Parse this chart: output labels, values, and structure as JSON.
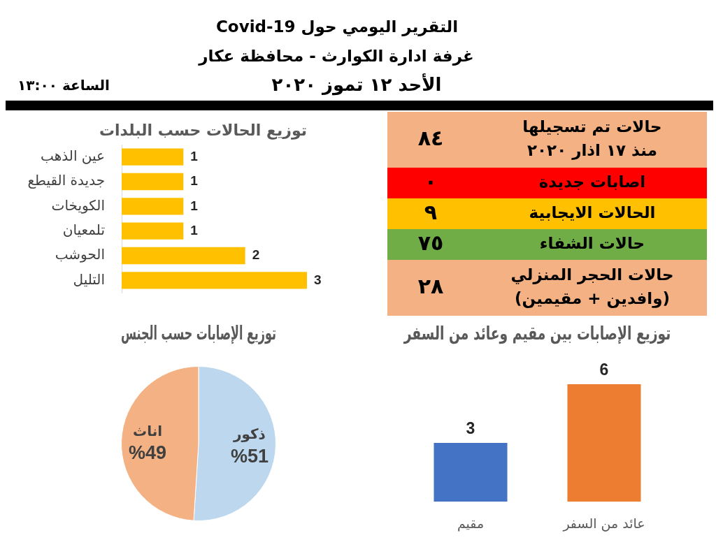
{
  "chart_data": [
    {
      "type": "other",
      "title": "التقرير اليومي حول Covid-19",
      "subtitle": "غرفة ادارة الكوارث - محافظة عكار",
      "annotations": [
        "الأحد ١٢ تموز ٢٠٢٠",
        "الساعة ١٣:٠٠"
      ]
    },
    {
      "type": "other",
      "categories": [
        "حالات تم تسجيلها\nمنذ ١٧ اذار ٢٠٢٠",
        "اصابات جديدة",
        "الحالات الايجابية",
        "حالات الشفاء",
        "حالات الحجر المنزلي\n(وافدين + مقيمين)"
      ],
      "value_labels": [
        "٨٤",
        "٠",
        "٩",
        "٧٥",
        "٢٨"
      ],
      "colors": [
        "#f4b183",
        "#ff0000",
        "#ffc000",
        "#70ad47",
        "#f4b183"
      ]
    },
    {
      "type": "bar",
      "orientation": "horizontal",
      "title": "توزيع الحالات حسب البلدات",
      "categories": [
        "عين الذهب",
        "جديدة القيطع",
        "الكويخات",
        "تلمعيان",
        "الحوشب",
        "التليل"
      ],
      "values": [
        1,
        1,
        1,
        1,
        2,
        3
      ],
      "color": "#ffc000",
      "xlim": [
        0,
        3
      ],
      "data_labels": true,
      "tick_labels": "y"
    },
    {
      "type": "bar",
      "title": "توزيع الإصابات بين مقيم وعائد من السفر",
      "categories": [
        "مقيم",
        "عائد من السفر"
      ],
      "values": [
        3,
        6
      ],
      "colors": [
        "#4472c4",
        "#ed7d31"
      ],
      "ylim": [
        0,
        6
      ],
      "data_labels": true,
      "tick_labels": "x"
    },
    {
      "type": "pie",
      "title": "توزيع الإصابات حسب الجنس",
      "categories": [
        "ذكور",
        "اناث"
      ],
      "values": [
        51,
        49
      ],
      "colors": [
        "#bdd7ee",
        "#f4b183"
      ],
      "value_labels": [
        "%51",
        "%49"
      ]
    }
  ]
}
